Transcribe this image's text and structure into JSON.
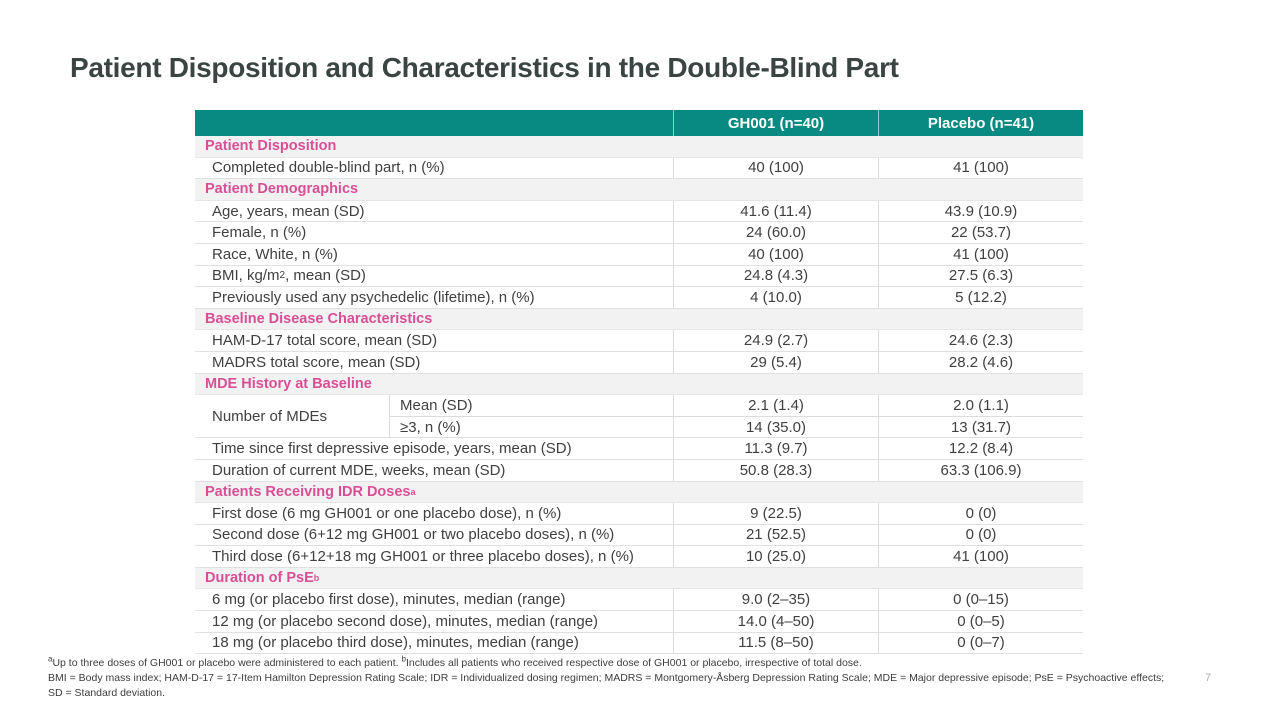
{
  "slide": {
    "title": "Patient Disposition and Characteristics in the Double-Blind Part",
    "page_number": "7"
  },
  "colors": {
    "header_teal": "#088a83",
    "section_pink": "#d94f95",
    "title_gray": "#3a4543"
  },
  "table": {
    "columns": [
      "GH001 (n=40)",
      "Placebo (n=41)"
    ],
    "rows": [
      {
        "type": "section",
        "label": "Patient Disposition"
      },
      {
        "type": "data",
        "label": "Completed double-blind part, n (%)",
        "gh001": "40 (100)",
        "placebo": "41 (100)"
      },
      {
        "type": "section",
        "label": "Patient Demographics"
      },
      {
        "type": "data",
        "label": "Age, years, mean (SD)",
        "gh001": "41.6 (11.4)",
        "placebo": "43.9 (10.9)"
      },
      {
        "type": "data",
        "label": "Female, n (%)",
        "gh001": "24 (60.0)",
        "placebo": "22 (53.7)"
      },
      {
        "type": "data",
        "label": "Race, White, n (%)",
        "gh001": "40 (100)",
        "placebo": "41 (100)"
      },
      {
        "type": "data",
        "label_pre": "BMI, kg/m",
        "label_sup": "2",
        "label_post": ", mean (SD)",
        "gh001": "24.8 (4.3)",
        "placebo": "27.5 (6.3)"
      },
      {
        "type": "data",
        "label": "Previously used any psychedelic (lifetime), n (%)",
        "gh001": "4 (10.0)",
        "placebo": "5 (12.2)"
      },
      {
        "type": "section",
        "label": "Baseline Disease Characteristics"
      },
      {
        "type": "data",
        "label": "HAM-D-17 total score, mean (SD)",
        "gh001": "24.9 (2.7)",
        "placebo": "24.6 (2.3)"
      },
      {
        "type": "data",
        "label": "MADRS total score, mean (SD)",
        "gh001": "29 (5.4)",
        "placebo": "28.2 (4.6)"
      },
      {
        "type": "section",
        "label": "MDE History at Baseline"
      },
      {
        "type": "split",
        "label": "Number of MDEs",
        "subrows": [
          {
            "label": "Mean (SD)",
            "gh001": "2.1 (1.4)",
            "placebo": "2.0 (1.1)"
          },
          {
            "label": "≥3, n (%)",
            "gh001": "14 (35.0)",
            "placebo": "13 (31.7)"
          }
        ]
      },
      {
        "type": "data",
        "label": "Time since first depressive episode, years, mean (SD)",
        "gh001": "11.3 (9.7)",
        "placebo": "12.2 (8.4)"
      },
      {
        "type": "data",
        "label": "Duration of current MDE, weeks, mean (SD)",
        "gh001": "50.8 (28.3)",
        "placebo": "63.3 (106.9)"
      },
      {
        "type": "section",
        "label": "Patients Receiving IDR Doses",
        "sup": "a"
      },
      {
        "type": "data",
        "label": "First dose (6 mg GH001 or one placebo dose), n (%)",
        "gh001": "9 (22.5)",
        "placebo": "0 (0)"
      },
      {
        "type": "data",
        "label": "Second dose (6+12 mg GH001 or two placebo doses), n (%)",
        "gh001": "21 (52.5)",
        "placebo": "0 (0)"
      },
      {
        "type": "data",
        "label": "Third dose (6+12+18 mg GH001 or three placebo doses), n (%)",
        "gh001": "10 (25.0)",
        "placebo": "41 (100)"
      },
      {
        "type": "section",
        "label": "Duration of PsE",
        "sup": "b"
      },
      {
        "type": "data",
        "label": "6 mg (or placebo first dose), minutes, median (range)",
        "gh001": "9.0 (2–35)",
        "placebo": "0 (0–15)"
      },
      {
        "type": "data",
        "label": "12 mg (or placebo second dose), minutes, median (range)",
        "gh001": "14.0 (4–50)",
        "placebo": "0 (0–5)"
      },
      {
        "type": "data",
        "label": "18 mg (or placebo third dose), minutes, median (range)",
        "gh001": "11.5 (8–50)",
        "placebo": "0 (0–7)"
      }
    ]
  },
  "footnotes": {
    "line1": {
      "sup_a": "a",
      "text_a": "Up to three doses of GH001 or placebo were administered to each patient. ",
      "sup_b": "b",
      "text_b": "Includes all patients who received respective dose of GH001 or placebo, irrespective of total dose."
    },
    "abbreviations": "BMI = Body mass index; HAM-D-17 = 17-Item Hamilton Depression Rating Scale; IDR = Individualized dosing regimen; MADRS = Montgomery-Åsberg Depression Rating Scale; MDE = Major depressive episode; PsE = Psychoactive effects; SD = Standard deviation."
  }
}
